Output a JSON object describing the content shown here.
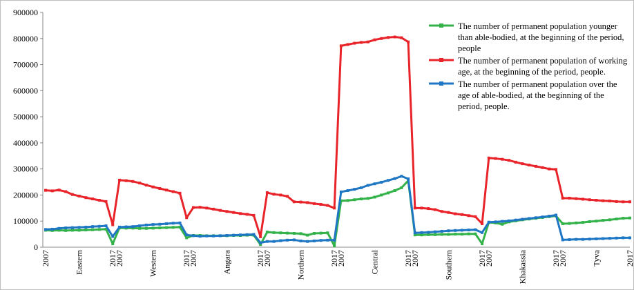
{
  "chart_data": {
    "type": "line",
    "categories": [
      "2007",
      null,
      null,
      null,
      null,
      "Eastern",
      null,
      null,
      null,
      null,
      "2017",
      "2007",
      null,
      null,
      null,
      null,
      "Western",
      null,
      null,
      null,
      null,
      "2017",
      "2007",
      null,
      null,
      null,
      null,
      "Angara",
      null,
      null,
      null,
      null,
      "2017",
      "2007",
      null,
      null,
      null,
      null,
      "Northern",
      null,
      null,
      null,
      null,
      "2017",
      "2007",
      null,
      null,
      null,
      null,
      "Central",
      null,
      null,
      null,
      null,
      "2017",
      "2007",
      null,
      null,
      null,
      null,
      "Southern",
      null,
      null,
      null,
      null,
      "2017",
      "2007",
      null,
      null,
      null,
      null,
      "Khakassia",
      null,
      null,
      null,
      null,
      "2017",
      "2007",
      null,
      null,
      null,
      null,
      "Tyva",
      null,
      null,
      null,
      null,
      "2017"
    ],
    "series": [
      {
        "name": "The number of permanent population younger than able-bodied, at the beginning of the period, people",
        "color": "#33b24a",
        "values": [
          65000,
          64000,
          65000,
          64000,
          65000,
          65000,
          66000,
          67000,
          68000,
          69000,
          13000,
          74000,
          73000,
          73000,
          72000,
          72000,
          73000,
          74000,
          75000,
          76000,
          77000,
          36000,
          45000,
          45000,
          44000,
          44000,
          44000,
          44000,
          45000,
          45000,
          46000,
          46000,
          10000,
          58000,
          56000,
          55000,
          54000,
          53000,
          52000,
          46000,
          53000,
          54000,
          55000,
          5000,
          178000,
          179000,
          182000,
          185000,
          187000,
          192000,
          200000,
          208000,
          217000,
          228000,
          255000,
          47000,
          47000,
          48000,
          48000,
          49000,
          49000,
          50000,
          50000,
          51000,
          51000,
          13000,
          95000,
          93000,
          88000,
          97000,
          101000,
          105000,
          108000,
          111000,
          114000,
          117000,
          120000,
          90000,
          91000,
          93000,
          95000,
          98000,
          100000,
          103000,
          105000,
          108000,
          111000,
          112000
        ]
      },
      {
        "name": "The number of permanent population of working age, at the beginning of the period, people.",
        "color": "#e8242a",
        "values": [
          218000,
          216000,
          219000,
          213000,
          202000,
          196000,
          190000,
          185000,
          180000,
          175000,
          86000,
          257000,
          255000,
          252000,
          246000,
          238000,
          231000,
          225000,
          219000,
          213000,
          207000,
          113000,
          152000,
          153000,
          150000,
          146000,
          141000,
          137000,
          133000,
          129000,
          126000,
          122000,
          40000,
          209000,
          203000,
          200000,
          195000,
          174000,
          173000,
          171000,
          167000,
          164000,
          160000,
          150000,
          772000,
          777000,
          782000,
          785000,
          787000,
          795000,
          800000,
          804000,
          806000,
          803000,
          787000,
          150000,
          150000,
          148000,
          144000,
          137000,
          133000,
          128000,
          125000,
          121000,
          117000,
          90000,
          342000,
          340000,
          337000,
          333000,
          326000,
          320000,
          315000,
          310000,
          305000,
          300000,
          298000,
          188000,
          188000,
          186000,
          184000,
          182000,
          180000,
          178000,
          177000,
          175000,
          174000,
          174000
        ]
      },
      {
        "name": "The number of permanent population over the age of able-bodied, at the beginning of the period, people.",
        "color": "#1f77c4",
        "values": [
          68000,
          69000,
          72000,
          74000,
          75000,
          76000,
          77000,
          79000,
          80000,
          82000,
          41000,
          77000,
          78000,
          79000,
          82000,
          85000,
          87000,
          88000,
          90000,
          92000,
          93000,
          47000,
          44000,
          42000,
          43000,
          43000,
          44000,
          45000,
          46000,
          47000,
          48000,
          49000,
          17000,
          22000,
          22000,
          25000,
          27000,
          28000,
          24000,
          22000,
          24000,
          26000,
          27000,
          27000,
          212000,
          217000,
          222000,
          228000,
          237000,
          243000,
          249000,
          256000,
          263000,
          272000,
          262000,
          55000,
          56000,
          57000,
          59000,
          61000,
          63000,
          64000,
          65000,
          66000,
          67000,
          56000,
          96000,
          97000,
          99000,
          101000,
          104000,
          107000,
          110000,
          113000,
          116000,
          119000,
          123000,
          28000,
          29000,
          30000,
          30000,
          31000,
          32000,
          33000,
          34000,
          35000,
          36000,
          36000
        ]
      }
    ],
    "ylim": [
      0,
      900000
    ],
    "yticks": [
      0,
      100000,
      200000,
      300000,
      400000,
      500000,
      600000,
      700000,
      800000,
      900000
    ],
    "grid": false,
    "legend": "upper right"
  }
}
